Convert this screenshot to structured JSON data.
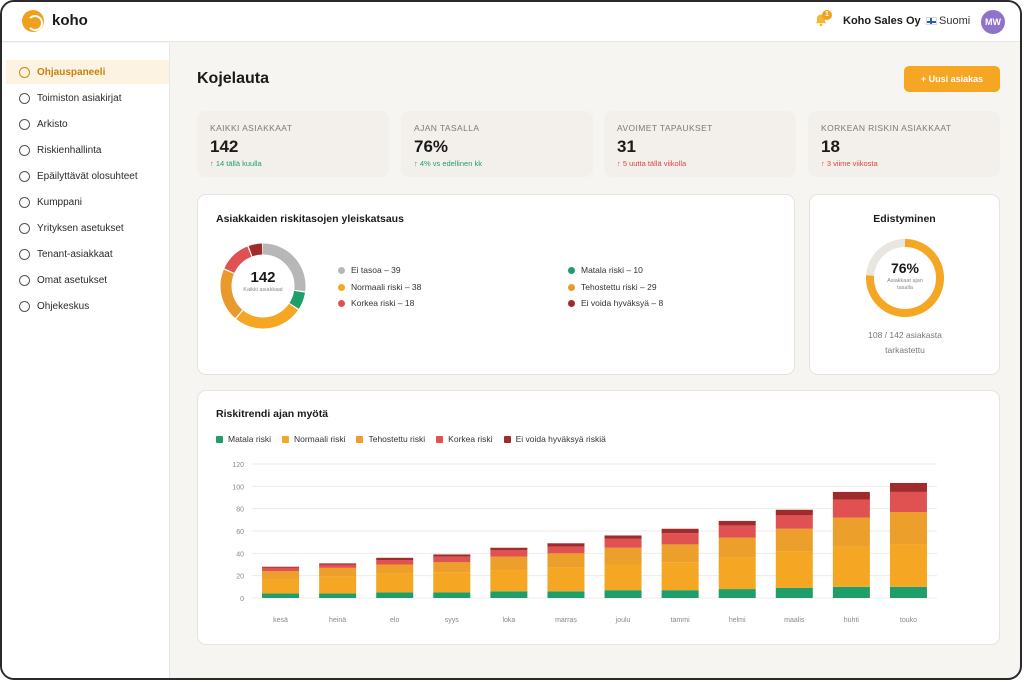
{
  "app": {
    "name": "koho"
  },
  "header": {
    "notifications": "1",
    "company": "Koho Sales Oy",
    "language": "Suomi",
    "avatar_initials": "MW"
  },
  "sidebar": {
    "items": [
      {
        "label": "Ohjauspaneeli",
        "active": true
      },
      {
        "label": "Toimiston asiakirjat"
      },
      {
        "label": "Arkisto"
      },
      {
        "label": "Riskienhallinta"
      },
      {
        "label": "Epäilyttävät olosuhteet"
      },
      {
        "label": "Kumppani"
      },
      {
        "label": "Yrityksen asetukset"
      },
      {
        "label": "Tenant-asiakkaat"
      },
      {
        "label": "Omat asetukset"
      },
      {
        "label": "Ohjekeskus"
      }
    ]
  },
  "main": {
    "title": "Kojelauta",
    "new_button": "+ Uusi asiakas",
    "stats": [
      {
        "label": "KAIKKI ASIAKKAAT",
        "value": "142",
        "delta": "↑ 14 tällä kuulla",
        "trend": "up"
      },
      {
        "label": "AJAN TASALLA",
        "value": "76%",
        "delta": "↑ 4% vs edellinen kk",
        "trend": "up"
      },
      {
        "label": "AVOIMET TAPAUKSET",
        "value": "31",
        "delta": "↑ 5 uutta tällä viikolla",
        "trend": "down"
      },
      {
        "label": "KORKEAN RISKIN ASIAKKAAT",
        "value": "18",
        "delta": "↑ 3 viime viikosta",
        "trend": "down"
      }
    ],
    "risk_overview": {
      "title": "Asiakkaiden riskitasojen yleiskatsaus",
      "total": "142",
      "total_label": "Kaikki asiakkaat",
      "legend": [
        {
          "label": "Ei tasoa – 39",
          "value": 39,
          "color": "#b7b7b7"
        },
        {
          "label": "Matala riski – 10",
          "value": 10,
          "color": "#1e9e6a"
        },
        {
          "label": "Normaali riski – 38",
          "value": 38,
          "color": "#f5a623"
        },
        {
          "label": "Tehostettu riski – 29",
          "value": 29,
          "color": "#e89a2c"
        },
        {
          "label": "Korkea riski – 18",
          "value": 18,
          "color": "#e05252"
        },
        {
          "label": "Ei voida hyväksyä – 8",
          "value": 8,
          "color": "#a12a2a"
        }
      ]
    },
    "progress": {
      "title": "Edistyminen",
      "percent_label": "76%",
      "percent": 76,
      "center_label": "Asiakkaat ajan tasalla",
      "caption": "108 / 142 asiakasta tarkastettu",
      "color": "#f5a623",
      "track_color": "#e9e6e1"
    }
  },
  "chart_data": {
    "type": "bar",
    "title": "Riskitrendi ajan myötä",
    "stacked": true,
    "categories": [
      "kesä",
      "heinä",
      "elo",
      "syys",
      "loka",
      "marras",
      "joulu",
      "tammi",
      "helmi",
      "maalis",
      "huhti",
      "touko"
    ],
    "ylim": [
      0,
      120
    ],
    "yticks": [
      0,
      20,
      40,
      60,
      80,
      100,
      120
    ],
    "grid": true,
    "legend_position": "top-left",
    "series": [
      {
        "name": "Matala riski",
        "color": "#1e9e6a",
        "values": [
          4,
          4,
          5,
          5,
          6,
          6,
          7,
          7,
          8,
          9,
          10,
          10
        ]
      },
      {
        "name": "Normaali riski",
        "color": "#f5a623",
        "values": [
          13,
          15,
          17,
          18,
          19,
          21,
          23,
          25,
          28,
          33,
          36,
          38
        ]
      },
      {
        "name": "Tehostettu riski",
        "color": "#ec9f2a",
        "values": [
          7,
          8,
          8,
          9,
          12,
          13,
          15,
          16,
          18,
          20,
          26,
          29
        ]
      },
      {
        "name": "Korkea riski",
        "color": "#e05252",
        "values": [
          3,
          3,
          4,
          5,
          6,
          6,
          8,
          10,
          11,
          12,
          16,
          18
        ]
      },
      {
        "name": "Ei voida hyväksyä riskiä",
        "color": "#a12a2a",
        "values": [
          1,
          1,
          2,
          2,
          2,
          3,
          3,
          4,
          4,
          5,
          7,
          8
        ]
      }
    ]
  }
}
